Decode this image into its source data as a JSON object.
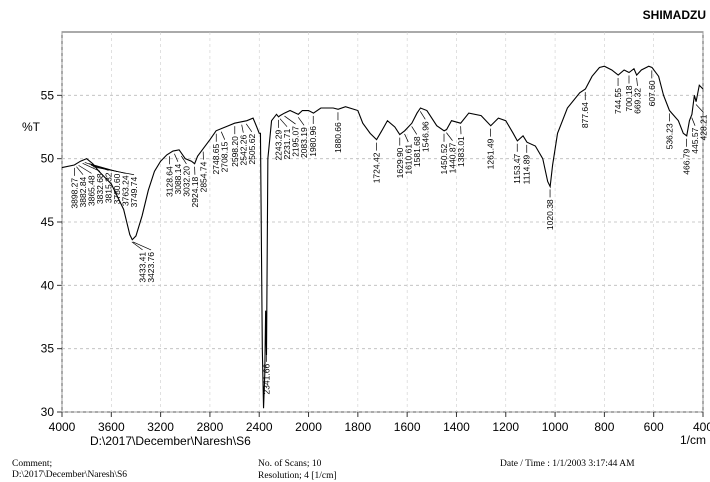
{
  "brand": "SHIMADZU",
  "chart_data": {
    "type": "line",
    "y_label": "%T",
    "x_label": "1/cm",
    "file_path": "D:\\2017\\December\\Naresh\\S6",
    "xlim": [
      4000,
      400
    ],
    "ylim": [
      30,
      60
    ],
    "xticks": [
      4000,
      3600,
      3200,
      2800,
      2400,
      2000,
      1800,
      1600,
      1400,
      1200,
      1000,
      800,
      600,
      400
    ],
    "yticks": [
      30,
      35,
      40,
      45,
      50,
      55
    ],
    "grid": true,
    "x": [
      4000,
      3900,
      3850,
      3800,
      3750,
      3700,
      3600,
      3500,
      3450,
      3430,
      3400,
      3350,
      3300,
      3250,
      3200,
      3150,
      3100,
      3050,
      3000,
      2950,
      2924,
      2900,
      2854,
      2800,
      2750,
      2700,
      2650,
      2600,
      2550,
      2500,
      2450,
      2420,
      2400,
      2390,
      2375,
      2365,
      2355,
      2348,
      2341,
      2330,
      2300,
      2260,
      2243,
      2231,
      2195,
      2150,
      2083,
      2050,
      2000,
      1980,
      1950,
      1900,
      1880,
      1850,
      1800,
      1780,
      1750,
      1724,
      1700,
      1680,
      1650,
      1630,
      1610,
      1581,
      1560,
      1546,
      1520,
      1480,
      1450,
      1440,
      1420,
      1383,
      1350,
      1300,
      1261,
      1230,
      1200,
      1170,
      1153,
      1130,
      1114,
      1080,
      1050,
      1030,
      1020,
      1010,
      990,
      950,
      900,
      877,
      850,
      820,
      800,
      770,
      744,
      720,
      700,
      680,
      669,
      650,
      620,
      607,
      580,
      560,
      540,
      536,
      500,
      480,
      466,
      455,
      445,
      435,
      428,
      415,
      400
    ],
    "series": [
      {
        "color": "#000000",
        "values": [
          49.3,
          49.5,
          49.8,
          50.0,
          49.6,
          49.0,
          48.0,
          46.0,
          44.0,
          43.6,
          43.9,
          45.5,
          47.5,
          49.0,
          49.8,
          50.3,
          50.6,
          50.7,
          50.0,
          49.8,
          49.6,
          50.2,
          50.8,
          51.5,
          52.2,
          52.4,
          52.6,
          52.8,
          52.9,
          53.0,
          53.2,
          52.5,
          52.0,
          52.0,
          35.0,
          30.3,
          33.0,
          38.0,
          34.5,
          50.0,
          53.0,
          53.5,
          53.3,
          53.4,
          53.6,
          53.8,
          53.5,
          53.8,
          53.8,
          53.6,
          54.0,
          54.0,
          53.9,
          54.1,
          53.8,
          52.8,
          52.0,
          51.5,
          52.3,
          53.0,
          52.5,
          51.9,
          52.2,
          52.8,
          53.6,
          54.0,
          53.8,
          52.6,
          52.2,
          52.3,
          53.0,
          52.8,
          53.6,
          53.4,
          52.6,
          53.2,
          53.0,
          52.0,
          51.4,
          51.8,
          51.3,
          51.0,
          50.0,
          48.2,
          47.8,
          49.5,
          52.0,
          54.0,
          55.2,
          55.5,
          56.5,
          57.2,
          57.3,
          57.0,
          56.6,
          57.0,
          56.8,
          57.1,
          56.6,
          57.0,
          57.3,
          57.2,
          56.5,
          55.0,
          54.0,
          53.8,
          53.0,
          52.0,
          51.8,
          53.0,
          53.5,
          55.0,
          54.5,
          55.8,
          55.5
        ]
      }
    ],
    "peaks": [
      3898.27,
      3882.84,
      3865.48,
      3832.68,
      3815.32,
      {
        "value": 3780.6,
        "label": "3780.60"
      },
      3763.24,
      3749.74,
      3433.41,
      3423.76,
      3128.64,
      3088.14,
      {
        "value": 3032.2,
        "label": "3032.20"
      },
      2924.18,
      2854.74,
      2748.65,
      2708.15,
      {
        "value": 2598.2,
        "label": "2598.20"
      },
      2542.26,
      2505.62,
      2341.66,
      2243.29,
      2231.71,
      2195.07,
      2083.19,
      1980.96,
      1880.66,
      1724.42,
      {
        "value": 1629.9,
        "label": "1629.90"
      },
      1610.61,
      1581.68,
      1546.96,
      1450.52,
      1440.87,
      1383.01,
      1261.49,
      1153.47,
      1114.89,
      1020.38,
      877.64,
      744.55,
      700.18,
      669.32,
      {
        "value": 607.6,
        "label": "607.60"
      },
      536.23,
      466.79,
      445.57,
      428.21
    ]
  },
  "footer": {
    "comment_label": "Comment;",
    "comment_path": "D:\\2017\\December\\Naresh\\S6",
    "scans": "No. of Scans; 10",
    "resolution": "Resolution;    4 [1/cm]",
    "datetime": "Date / Time : 1/1/2003    3:17:44 AM"
  }
}
